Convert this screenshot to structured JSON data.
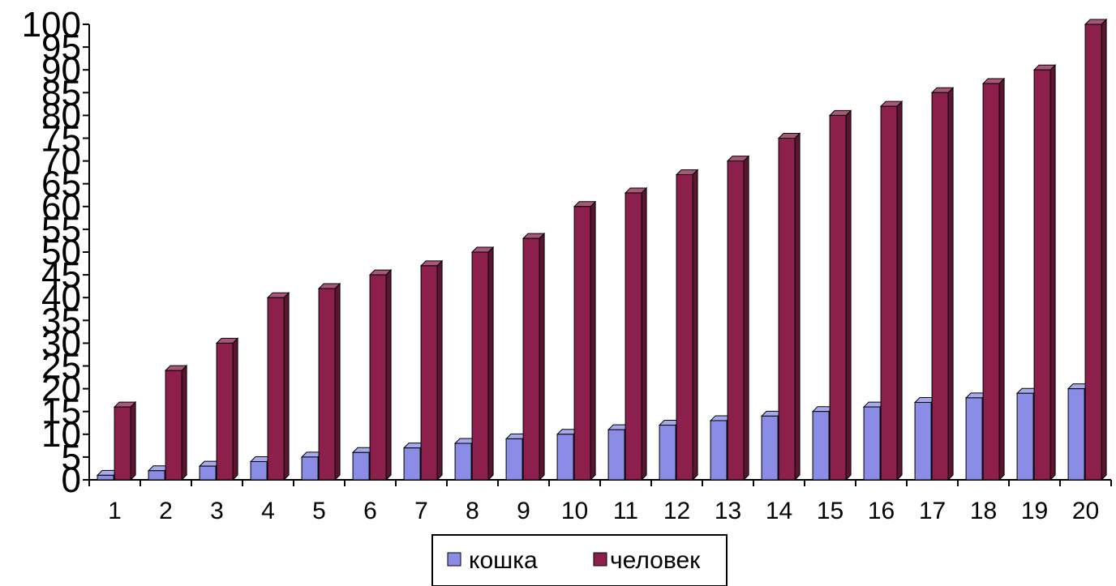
{
  "chart_data": {
    "type": "bar",
    "title": "",
    "xlabel": "",
    "ylabel": "",
    "ylim": [
      0,
      100
    ],
    "yticks": [
      "0",
      "5",
      "10",
      "15",
      "20",
      "25",
      "30",
      "35",
      "40",
      "45",
      "50",
      "55",
      "60",
      "65",
      "70",
      "75",
      "80",
      "85",
      "90",
      "95",
      "100"
    ],
    "categories": [
      "1",
      "2",
      "3",
      "4",
      "5",
      "6",
      "7",
      "8",
      "9",
      "10",
      "11",
      "12",
      "13",
      "14",
      "15",
      "16",
      "17",
      "18",
      "19",
      "20"
    ],
    "series": [
      {
        "name": "кошка",
        "color": "#8A8CE6",
        "values": [
          1,
          2,
          3,
          4,
          5,
          6,
          7,
          8,
          9,
          10,
          11,
          12,
          13,
          14,
          15,
          16,
          17,
          18,
          19,
          20
        ]
      },
      {
        "name": "человек",
        "color": "#8C1F4B",
        "values": [
          16,
          24,
          30,
          40,
          42,
          45,
          47,
          50,
          53,
          60,
          63,
          67,
          70,
          75,
          80,
          82,
          85,
          87,
          90,
          100
        ]
      }
    ],
    "legend_position": "bottom-center",
    "grid": false
  }
}
